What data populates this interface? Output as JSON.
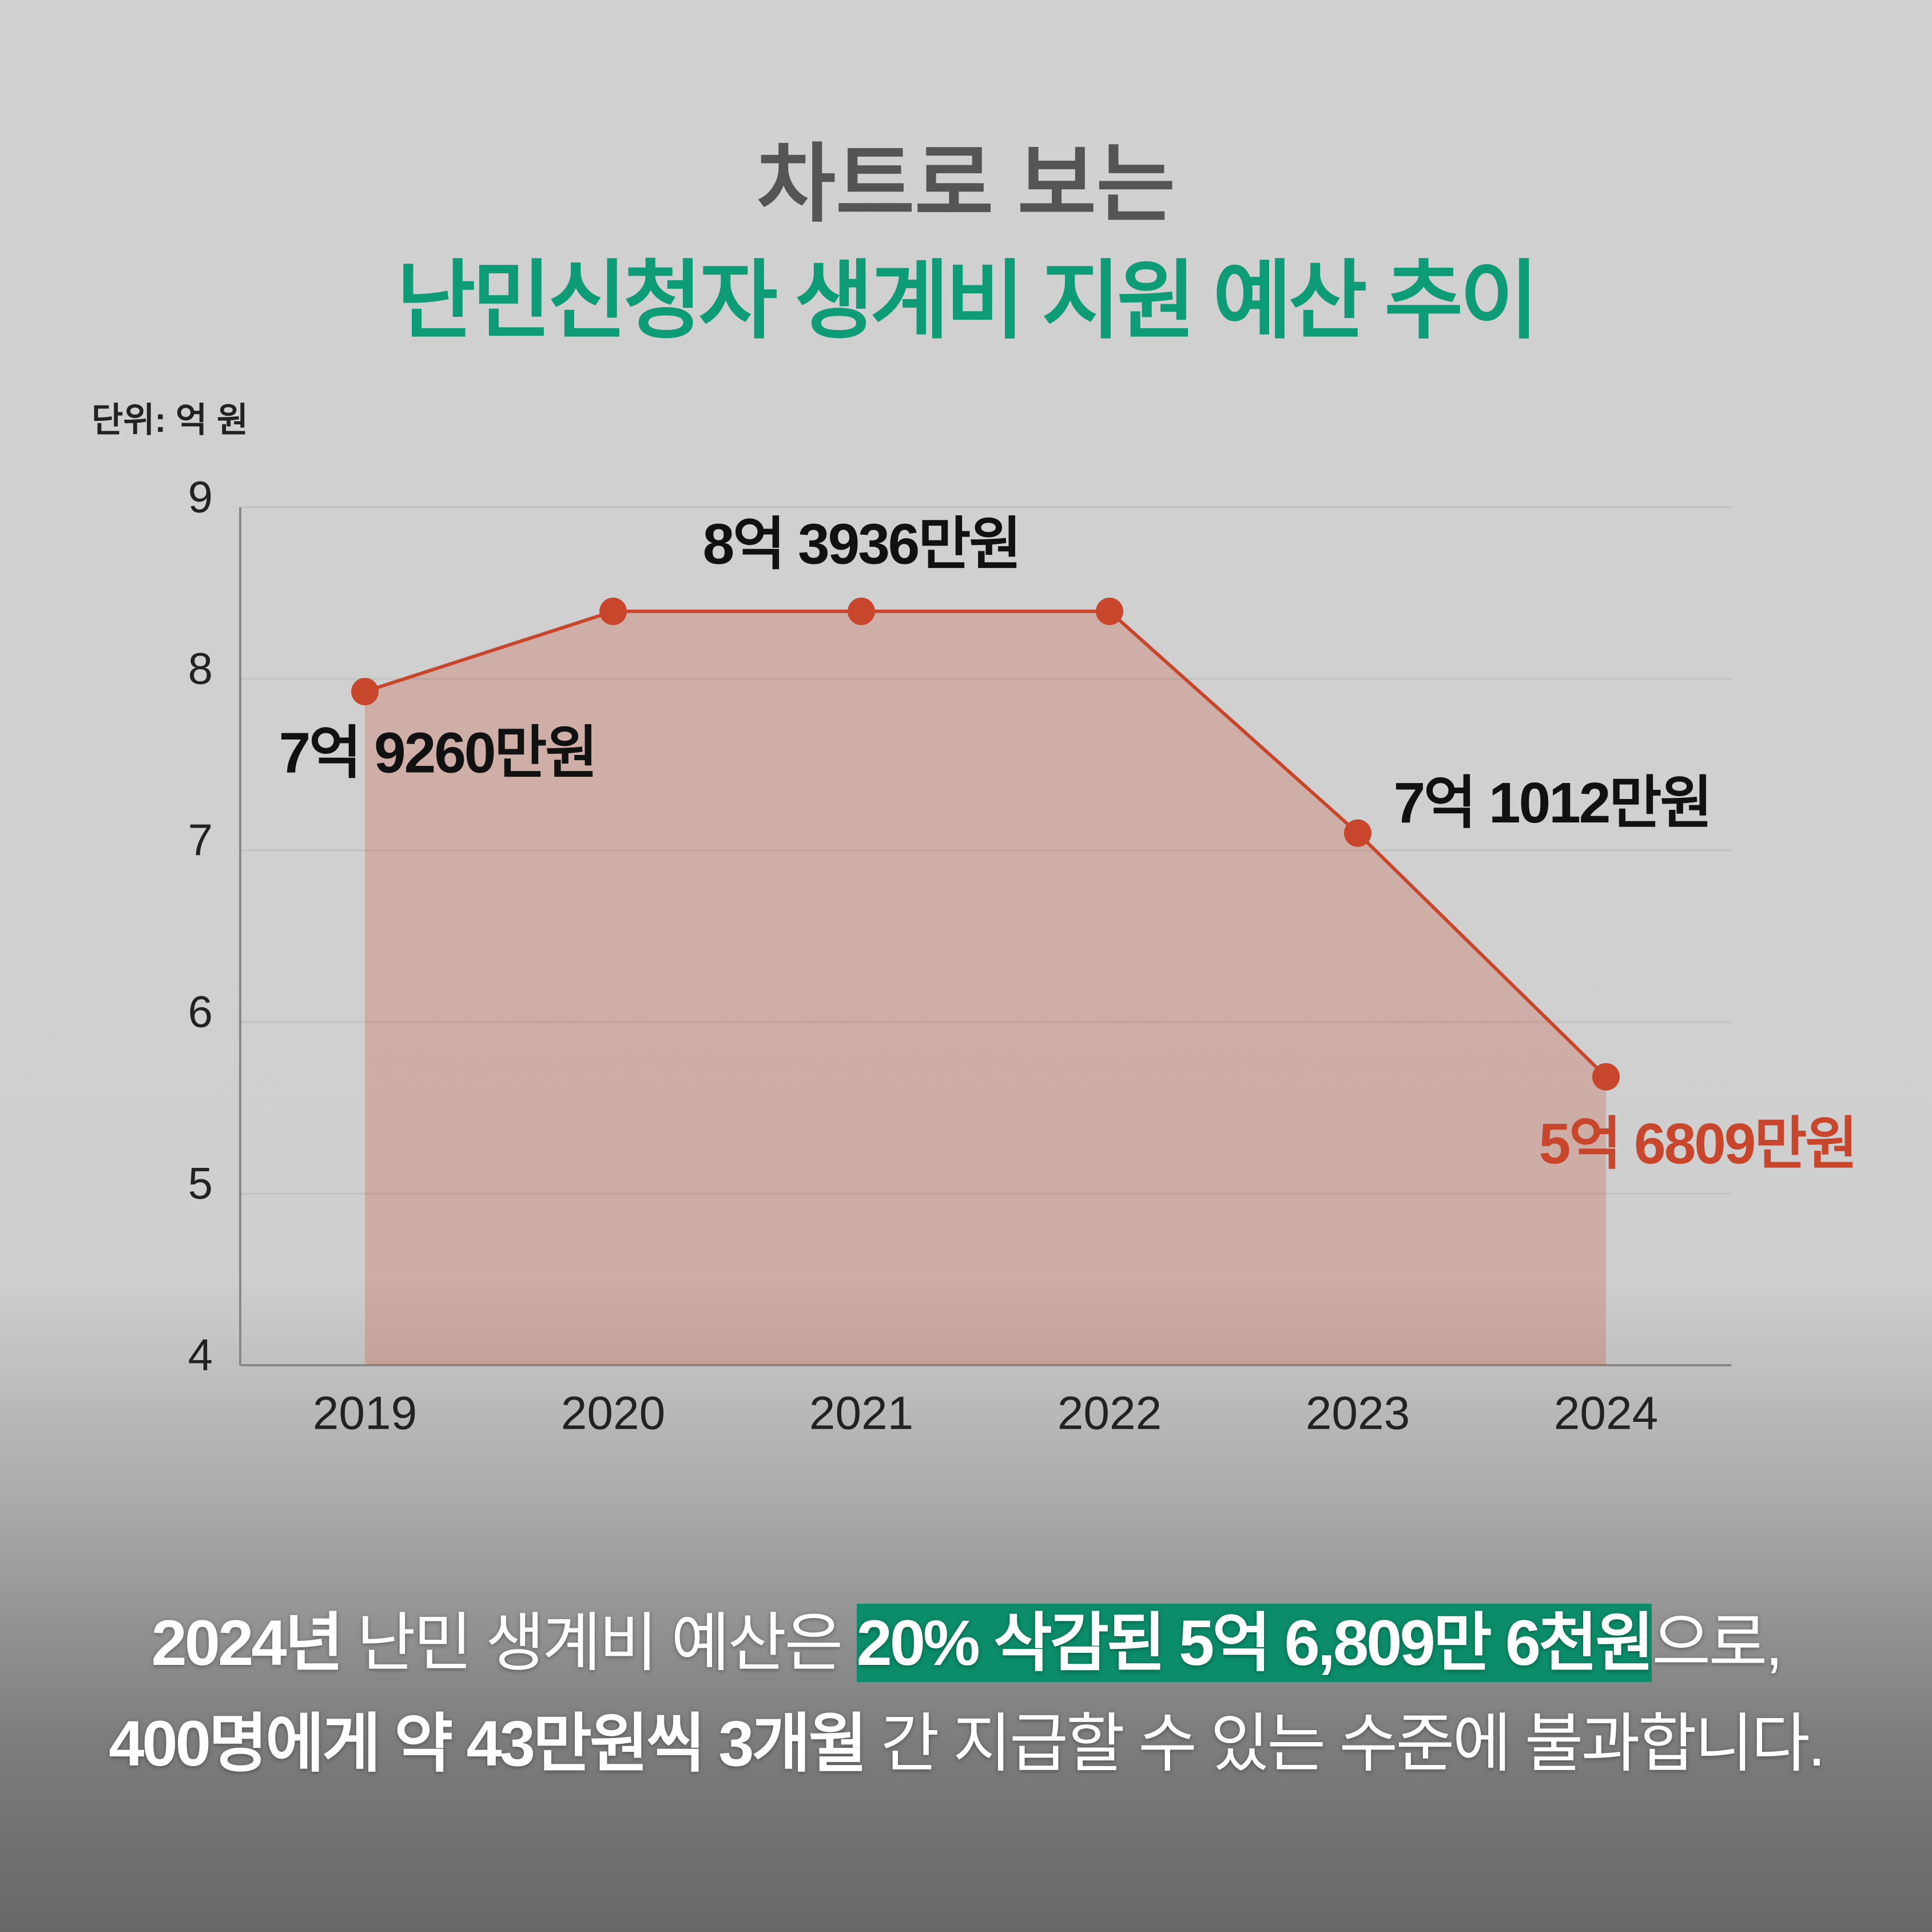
{
  "chart_data": {
    "type": "line",
    "title": "차트로 보는",
    "subtitle": "난민신청자 생계비 지원 예산 추이",
    "y_label": "단위: 억 원",
    "categories": [
      "2019",
      "2020",
      "2021",
      "2022",
      "2023",
      "2024"
    ],
    "series": [
      {
        "color": "#c8462c",
        "values": [
          7.926,
          8.3936,
          8.3936,
          8.3936,
          7.1012,
          5.6809
        ],
        "value_labels": [
          "7억 9260만원",
          null,
          "8억 3936만원",
          null,
          "7억 1012만원",
          "5억 6809만원"
        ]
      }
    ],
    "ylim": [
      4,
      9
    ],
    "yticks": [
      4,
      5,
      6,
      7,
      8,
      9
    ],
    "grid": true,
    "area": true
  },
  "caption": {
    "lines": [
      [
        "2024년",
        " 난민 생계비 예산은 ",
        "20% 삭감된 5억 6,809만 6천원",
        "으로,"
      ],
      [
        "400명에게 약 43만원씩 3개월",
        " 간 지급할 수 있는 수준에 불과합니다."
      ]
    ]
  }
}
